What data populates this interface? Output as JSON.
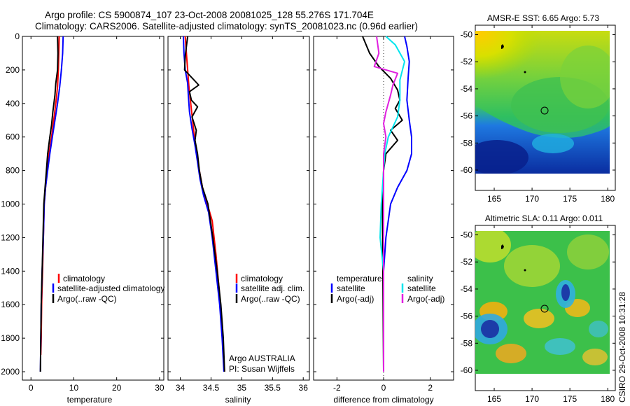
{
  "figure": {
    "title_line1": "Argo profile: CS 5900874_107 23-Oct-2008 20081025_128 55.276S 171.704E",
    "title_line2": "Climatology: CARS2006. Satellite-adjusted climatology: synTS_20081023.nc (0.96d earlier)",
    "side_label": "CSIRO 29-Oct-2008 10:31:28"
  },
  "colors": {
    "climatology": "#ff0000",
    "satellite": "#0000ff",
    "argo": "#000000",
    "satellite_salinity_diff": "#00e5ee",
    "argo_salinity_diff": "#e020e0"
  },
  "chart_data": [
    {
      "type": "line",
      "panel": "temperature",
      "xlabel": "temperature",
      "ylabel": "",
      "xlim": [
        -2,
        31
      ],
      "ylim": [
        2050,
        0
      ],
      "x_ticks": [
        0,
        10,
        20,
        30
      ],
      "y_ticks": [
        0,
        200,
        400,
        600,
        800,
        1000,
        1200,
        1400,
        1600,
        1800,
        2000
      ],
      "y_reversed": true,
      "series": [
        {
          "name": "climatology",
          "color": "#ff0000",
          "points": [
            [
              6.6,
              0
            ],
            [
              6.5,
              100
            ],
            [
              6.4,
              200
            ],
            [
              6.2,
              300
            ],
            [
              5.8,
              400
            ],
            [
              5.3,
              500
            ],
            [
              4.8,
              600
            ],
            [
              4.2,
              700
            ],
            [
              3.8,
              800
            ],
            [
              3.4,
              900
            ],
            [
              3.1,
              1000
            ],
            [
              2.9,
              1200
            ],
            [
              2.7,
              1400
            ],
            [
              2.5,
              1600
            ],
            [
              2.4,
              1800
            ],
            [
              2.3,
              1900
            ]
          ]
        },
        {
          "name": "satellite-adjusted climatology",
          "color": "#0000ff",
          "points": [
            [
              7.5,
              0
            ],
            [
              7.4,
              100
            ],
            [
              7.1,
              200
            ],
            [
              6.7,
              300
            ],
            [
              6.2,
              400
            ],
            [
              5.6,
              500
            ],
            [
              5.0,
              600
            ],
            [
              4.4,
              700
            ],
            [
              3.9,
              800
            ],
            [
              3.4,
              900
            ],
            [
              3.1,
              1000
            ],
            [
              2.9,
              1200
            ],
            [
              2.6,
              1400
            ],
            [
              2.4,
              1600
            ],
            [
              2.3,
              1800
            ],
            [
              2.2,
              2000
            ]
          ]
        },
        {
          "name": "Argo(..raw -QC)",
          "color": "#000000",
          "points": [
            [
              6.2,
              0
            ],
            [
              6.3,
              100
            ],
            [
              6.2,
              200
            ],
            [
              5.8,
              280
            ],
            [
              5.6,
              350
            ],
            [
              5.1,
              450
            ],
            [
              4.8,
              530
            ],
            [
              4.4,
              600
            ],
            [
              3.9,
              700
            ],
            [
              3.6,
              800
            ],
            [
              3.3,
              900
            ],
            [
              3.0,
              1000
            ],
            [
              2.8,
              1200
            ],
            [
              2.6,
              1400
            ],
            [
              2.4,
              1600
            ],
            [
              2.3,
              1800
            ],
            [
              2.2,
              2000
            ]
          ]
        }
      ],
      "legend": [
        "climatology",
        "satellite-adjusted climatology",
        "Argo(..raw -QC)"
      ]
    },
    {
      "type": "line",
      "panel": "salinity",
      "xlabel": "salinity",
      "ylabel": "",
      "xlim": [
        33.8,
        36.1
      ],
      "ylim": [
        2050,
        0
      ],
      "x_ticks": [
        34,
        34.5,
        35,
        35.5,
        36
      ],
      "y_reversed": true,
      "series": [
        {
          "name": "climatology",
          "color": "#ff0000",
          "points": [
            [
              34.08,
              0
            ],
            [
              34.1,
              100
            ],
            [
              34.12,
              200
            ],
            [
              34.14,
              300
            ],
            [
              34.17,
              400
            ],
            [
              34.2,
              500
            ],
            [
              34.23,
              600
            ],
            [
              34.27,
              700
            ],
            [
              34.31,
              800
            ],
            [
              34.36,
              900
            ],
            [
              34.44,
              1000
            ],
            [
              34.52,
              1100
            ],
            [
              34.58,
              1300
            ],
            [
              34.63,
              1500
            ],
            [
              34.67,
              1700
            ],
            [
              34.7,
              1900
            ],
            [
              34.72,
              2000
            ]
          ]
        },
        {
          "name": "satellite adj. clim.",
          "color": "#0000ff",
          "points": [
            [
              34.05,
              0
            ],
            [
              34.06,
              100
            ],
            [
              34.08,
              200
            ],
            [
              34.12,
              280
            ],
            [
              34.13,
              350
            ],
            [
              34.15,
              450
            ],
            [
              34.19,
              550
            ],
            [
              34.24,
              650
            ],
            [
              34.28,
              750
            ],
            [
              34.32,
              850
            ],
            [
              34.38,
              950
            ],
            [
              34.46,
              1050
            ],
            [
              34.52,
              1200
            ],
            [
              34.58,
              1400
            ],
            [
              34.64,
              1600
            ],
            [
              34.68,
              1800
            ],
            [
              34.71,
              2000
            ]
          ]
        },
        {
          "name": "Argo(..raw -QC)",
          "color": "#000000",
          "points": [
            [
              34.12,
              0
            ],
            [
              34.1,
              60
            ],
            [
              34.08,
              120
            ],
            [
              34.07,
              200
            ],
            [
              34.3,
              290
            ],
            [
              34.15,
              330
            ],
            [
              34.18,
              380
            ],
            [
              34.28,
              420
            ],
            [
              34.19,
              480
            ],
            [
              34.26,
              560
            ],
            [
              34.24,
              620
            ],
            [
              34.28,
              700
            ],
            [
              34.31,
              800
            ],
            [
              34.36,
              900
            ],
            [
              34.45,
              1000
            ],
            [
              34.53,
              1200
            ],
            [
              34.6,
              1400
            ],
            [
              34.66,
              1600
            ],
            [
              34.7,
              1800
            ],
            [
              34.72,
              2000
            ]
          ]
        }
      ],
      "legend": [
        "climatology",
        "satellite adj. clim.",
        "Argo(..raw -QC)"
      ],
      "annotation_line1": "Argo AUSTRALIA",
      "annotation_line2": "PI: Susan Wijffels"
    },
    {
      "type": "line",
      "panel": "difference",
      "xlabel": "difference from climatology",
      "ylabel": "",
      "xlim": [
        -3,
        3
      ],
      "ylim": [
        2050,
        0
      ],
      "x_ticks": [
        -2,
        0,
        2
      ],
      "y_reversed": true,
      "series": [
        {
          "name": "temperature satellite",
          "color": "#0000ff",
          "points": [
            [
              0.9,
              0
            ],
            [
              1.0,
              60
            ],
            [
              1.1,
              150
            ],
            [
              1.05,
              250
            ],
            [
              1.0,
              380
            ],
            [
              1.1,
              500
            ],
            [
              1.2,
              600
            ],
            [
              1.2,
              700
            ],
            [
              1.0,
              800
            ],
            [
              0.6,
              900
            ],
            [
              0.3,
              1000
            ],
            [
              0.1,
              1200
            ],
            [
              0.0,
              1400
            ],
            [
              0.0,
              1600
            ],
            [
              0.0,
              2000
            ]
          ]
        },
        {
          "name": "temperature Argo(-adj)",
          "color": "#000000",
          "points": [
            [
              -0.9,
              0
            ],
            [
              -0.6,
              100
            ],
            [
              -0.2,
              180
            ],
            [
              0.3,
              250
            ],
            [
              0.6,
              320
            ],
            [
              0.7,
              380
            ],
            [
              0.5,
              430
            ],
            [
              0.8,
              500
            ],
            [
              0.3,
              560
            ],
            [
              0.6,
              620
            ],
            [
              0.1,
              700
            ],
            [
              0.0,
              800
            ],
            [
              -0.05,
              1000
            ],
            [
              0.0,
              2000
            ]
          ]
        },
        {
          "name": "salinity satellite",
          "color": "#00e5ee",
          "points": [
            [
              0.1,
              0
            ],
            [
              0.5,
              50
            ],
            [
              0.9,
              150
            ],
            [
              0.7,
              260
            ],
            [
              0.7,
              380
            ],
            [
              0.6,
              480
            ],
            [
              0.2,
              600
            ],
            [
              0.05,
              700
            ],
            [
              0.0,
              800
            ],
            [
              -0.1,
              1000
            ],
            [
              -0.15,
              1200
            ],
            [
              0.0,
              1400
            ],
            [
              0.0,
              2000
            ]
          ]
        },
        {
          "name": "salinity Argo(-adj)",
          "color": "#e020e0",
          "points": [
            [
              -0.3,
              0
            ],
            [
              -0.2,
              100
            ],
            [
              -0.4,
              180
            ],
            [
              0.6,
              220
            ],
            [
              0.4,
              290
            ],
            [
              0.3,
              350
            ],
            [
              0.1,
              450
            ],
            [
              0.0,
              520
            ],
            [
              0.1,
              600
            ],
            [
              0.0,
              700
            ],
            [
              0.0,
              2000
            ]
          ]
        }
      ],
      "legend_left_header": "temperature",
      "legend_right_header": "salinity",
      "legend_entries": [
        "satellite",
        "Argo(-adj)",
        "satellite",
        "Argo(-adj)"
      ]
    }
  ],
  "maps": [
    {
      "title": "AMSR-E SST: 6.65  Argo: 5.73",
      "x_ticks": [
        "165",
        "170",
        "175",
        "180"
      ],
      "y_ticks": [
        "-50",
        "-52",
        "-54",
        "-56",
        "-58",
        "-60"
      ]
    },
    {
      "title": "Altimetric SLA: 0.11  Argo: 0.011",
      "x_ticks": [
        "165",
        "170",
        "175",
        "180"
      ],
      "y_ticks": [
        "-50",
        "-52",
        "-54",
        "-56",
        "-58",
        "-60"
      ]
    }
  ]
}
